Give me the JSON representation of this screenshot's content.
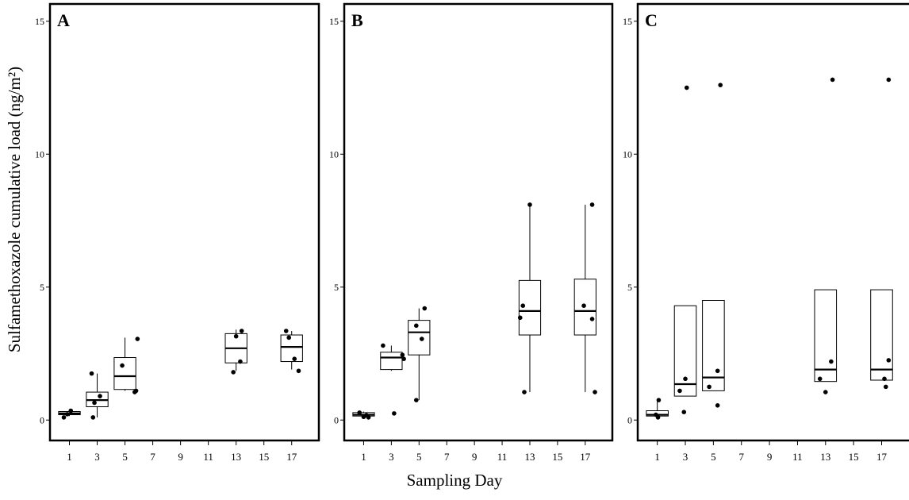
{
  "figure": {
    "ylabel": "Sulfamethoxazole cumulative load (ng/m²)",
    "xlabel": "Sampling Day"
  },
  "chart_data": [
    {
      "type": "box",
      "panel": "A",
      "xlabel": "Sampling Day",
      "ylabel": "Sulfamethoxazole cumulative load (ng/m²)",
      "xlim": [
        0,
        18.5
      ],
      "ylim": [
        -0.5,
        15.5
      ],
      "xticks": [
        1,
        3,
        5,
        7,
        9,
        11,
        13,
        15,
        17
      ],
      "yticks": [
        0,
        5,
        10,
        15
      ],
      "boxes": [
        {
          "day": 1,
          "q1": 0.2,
          "median": 0.25,
          "q3": 0.32,
          "whisker_low": 0.15,
          "whisker_high": 0.35
        },
        {
          "day": 3,
          "q1": 0.5,
          "median": 0.75,
          "q3": 1.05,
          "whisker_low": 0.1,
          "whisker_high": 1.75
        },
        {
          "day": 5,
          "q1": 1.15,
          "median": 1.65,
          "q3": 2.35,
          "whisker_low": 1.1,
          "whisker_high": 3.1
        },
        {
          "day": 13,
          "q1": 2.15,
          "median": 2.7,
          "q3": 3.25,
          "whisker_low": 1.85,
          "whisker_high": 3.4
        },
        {
          "day": 17,
          "q1": 2.2,
          "median": 2.75,
          "q3": 3.2,
          "whisker_low": 1.9,
          "whisker_high": 3.35
        }
      ],
      "points": [
        [
          0.6,
          0.1
        ],
        [
          1.1,
          0.35
        ],
        [
          0.85,
          0.22
        ],
        [
          2.6,
          1.75
        ],
        [
          2.7,
          0.1
        ],
        [
          2.8,
          0.65
        ],
        [
          3.2,
          0.9
        ],
        [
          4.8,
          2.05
        ],
        [
          5.9,
          3.05
        ],
        [
          5.8,
          1.1
        ],
        [
          5.7,
          1.05
        ],
        [
          12.8,
          1.8
        ],
        [
          13.0,
          3.15
        ],
        [
          13.4,
          3.35
        ],
        [
          13.3,
          2.2
        ],
        [
          16.6,
          3.35
        ],
        [
          16.8,
          3.1
        ],
        [
          17.2,
          2.3
        ],
        [
          17.5,
          1.85
        ]
      ]
    },
    {
      "type": "box",
      "panel": "B",
      "xlabel": "Sampling Day",
      "xlim": [
        0,
        18.5
      ],
      "ylim": [
        -0.5,
        15.5
      ],
      "xticks": [
        1,
        3,
        5,
        7,
        9,
        11,
        13,
        15,
        17
      ],
      "yticks": [
        0,
        5,
        10,
        15
      ],
      "boxes": [
        {
          "day": 1,
          "q1": 0.15,
          "median": 0.2,
          "q3": 0.28,
          "whisker_low": 0.1,
          "whisker_high": 0.32
        },
        {
          "day": 3,
          "q1": 1.9,
          "median": 2.35,
          "q3": 2.55,
          "whisker_low": 1.85,
          "whisker_high": 2.8
        },
        {
          "day": 5,
          "q1": 2.45,
          "median": 3.3,
          "q3": 3.75,
          "whisker_low": 0.75,
          "whisker_high": 4.2
        },
        {
          "day": 13,
          "q1": 3.2,
          "median": 4.1,
          "q3": 5.25,
          "whisker_low": 1.05,
          "whisker_high": 8.1
        },
        {
          "day": 17,
          "q1": 3.2,
          "median": 4.1,
          "q3": 5.3,
          "whisker_low": 1.05,
          "whisker_high": 8.1
        }
      ],
      "points": [
        [
          0.7,
          0.28
        ],
        [
          1.0,
          0.12
        ],
        [
          1.2,
          0.18
        ],
        [
          1.35,
          0.1
        ],
        [
          2.4,
          2.8
        ],
        [
          3.2,
          0.25
        ],
        [
          3.9,
          2.3
        ],
        [
          3.8,
          2.45
        ],
        [
          4.8,
          3.55
        ],
        [
          4.8,
          0.75
        ],
        [
          5.2,
          3.05
        ],
        [
          5.4,
          4.2
        ],
        [
          12.3,
          3.85
        ],
        [
          12.5,
          4.3
        ],
        [
          13.0,
          8.1
        ],
        [
          12.6,
          1.05
        ],
        [
          16.9,
          4.3
        ],
        [
          17.5,
          3.8
        ],
        [
          17.5,
          8.1
        ],
        [
          17.7,
          1.05
        ]
      ]
    },
    {
      "type": "box",
      "panel": "C",
      "xlabel": "Sampling Day",
      "xlim": [
        0,
        18.5
      ],
      "ylim": [
        -0.5,
        15.5
      ],
      "xticks": [
        1,
        3,
        5,
        7,
        9,
        11,
        13,
        15,
        17
      ],
      "yticks": [
        0,
        5,
        10,
        15
      ],
      "boxes": [
        {
          "day": 1,
          "q1": 0.15,
          "median": 0.2,
          "q3": 0.35,
          "whisker_low": 0.1,
          "whisker_high": 0.75
        },
        {
          "day": 3,
          "q1": 0.9,
          "median": 1.35,
          "q3": 4.3,
          "whisker_low": 0.9,
          "whisker_high": 4.3
        },
        {
          "day": 5,
          "q1": 1.1,
          "median": 1.6,
          "q3": 4.5,
          "whisker_low": 1.1,
          "whisker_high": 4.5
        },
        {
          "day": 13,
          "q1": 1.45,
          "median": 1.9,
          "q3": 4.9,
          "whisker_low": 1.45,
          "whisker_high": 4.9
        },
        {
          "day": 17,
          "q1": 1.5,
          "median": 1.9,
          "q3": 4.9,
          "whisker_low": 1.5,
          "whisker_high": 4.9
        }
      ],
      "points": [
        [
          0.9,
          0.2
        ],
        [
          1.1,
          0.75
        ],
        [
          1.05,
          0.1
        ],
        [
          2.6,
          1.1
        ],
        [
          2.9,
          0.3
        ],
        [
          3.0,
          1.55
        ],
        [
          3.1,
          12.5
        ],
        [
          4.7,
          1.25
        ],
        [
          5.3,
          0.55
        ],
        [
          5.3,
          1.85
        ],
        [
          5.5,
          12.6
        ],
        [
          12.6,
          1.55
        ],
        [
          13.0,
          1.05
        ],
        [
          13.4,
          2.2
        ],
        [
          13.5,
          12.8
        ],
        [
          17.2,
          1.55
        ],
        [
          17.3,
          1.25
        ],
        [
          17.5,
          2.25
        ],
        [
          17.5,
          12.8
        ]
      ]
    }
  ]
}
